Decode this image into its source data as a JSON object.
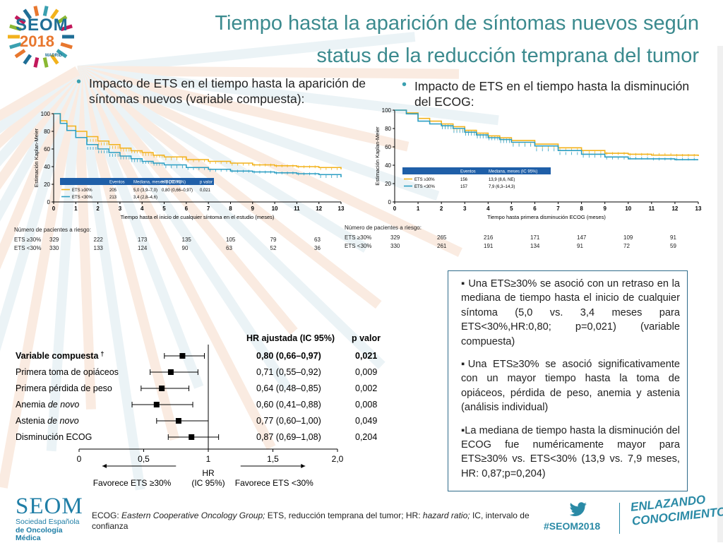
{
  "header": {
    "logo_line1": "SEOM",
    "logo_line2": "2018",
    "logo_city": "MADRID",
    "title_line1": "Tiempo hasta la aparición de síntomas nuevos según",
    "title_line2": "status de la reducción temprana del tumor"
  },
  "bullets": {
    "left_line1": "Impacto de ETS en el tiempo hasta la aparición de",
    "left_line2": "síntomas nuevos (variable compuesta):",
    "right_line1": "Impacto de ETS en el tiempo hasta la disminución",
    "right_line2": "del ECOG:"
  },
  "colors": {
    "ets_ge30": "#f2b21c",
    "ets_lt30": "#2b9ec3",
    "title": "#3b8a8e",
    "legend_header": "#1f5fa8",
    "accent": "#2a8aa6"
  },
  "chart_data": [
    {
      "type": "line",
      "title": "",
      "ylabel": "Estimación Kaplan-Meier",
      "xlabel": "Tiempo hasta el inicio de cualquier síntoma en el estudio (meses)",
      "x_ticks": [
        "0",
        "1",
        "2",
        "3",
        "4",
        "5",
        "6",
        "7",
        "8",
        "9",
        "10",
        "11",
        "12",
        "13"
      ],
      "y_ticks": [
        "0",
        "20",
        "40",
        "60",
        "80",
        "100"
      ],
      "xlim": [
        0,
        13
      ],
      "ylim": [
        0,
        100
      ],
      "legend": {
        "headers": [
          "Eventos",
          "Mediana, meses (IC95%)",
          "HR (IC 95%)",
          "p valor"
        ],
        "rows": [
          {
            "label": "ETS ≥30%",
            "events": "205",
            "median": "5,0 (3,9–7,0)",
            "hr": "0,80 (0,66–0,97)",
            "p": "0,021"
          },
          {
            "label": "ETS <30%",
            "events": "213",
            "median": "3,4 (2,8–4,6)",
            "hr": "",
            "p": ""
          }
        ]
      },
      "series": [
        {
          "name": "ETS ≥30%",
          "x": [
            0,
            0.3,
            0.6,
            1,
            1.5,
            2,
            2.5,
            3,
            3.5,
            4,
            4.5,
            5,
            6,
            7,
            8,
            9,
            10,
            11,
            12,
            13
          ],
          "y": [
            100,
            92,
            86,
            80,
            74,
            69,
            65,
            61,
            58,
            56,
            53,
            51,
            48,
            46,
            44,
            42,
            41,
            40,
            39,
            37
          ]
        },
        {
          "name": "ETS <30%",
          "x": [
            0,
            0.3,
            0.6,
            1,
            1.5,
            2,
            2.5,
            3,
            3.5,
            4,
            4.5,
            5,
            6,
            7,
            8,
            9,
            10,
            11,
            12,
            13
          ],
          "y": [
            100,
            89,
            81,
            73,
            65,
            60,
            56,
            52,
            49,
            46,
            44,
            42,
            39,
            37,
            35,
            34,
            33,
            32,
            31,
            28
          ]
        }
      ],
      "risk_table": {
        "title": "Número de pacientes a riesgo:",
        "rows": [
          {
            "label": "ETS ≥30%",
            "values": [
              "329",
              "222",
              "173",
              "135",
              "105",
              "79",
              "63"
            ]
          },
          {
            "label": "ETS <30%",
            "values": [
              "330",
              "133",
              "124",
              "90",
              "63",
              "52",
              "36"
            ]
          }
        ]
      }
    },
    {
      "type": "line",
      "title": "",
      "ylabel": "Estimación Kaplan-Meier",
      "xlabel": "Tiempo hasta primera disminución ECOG (meses)",
      "x_ticks": [
        "0",
        "1",
        "2",
        "3",
        "4",
        "5",
        "6",
        "7",
        "8",
        "9",
        "10",
        "11",
        "12",
        "13"
      ],
      "y_ticks": [
        "0",
        "20",
        "40",
        "60",
        "80",
        "100"
      ],
      "xlim": [
        0,
        13
      ],
      "ylim": [
        0,
        100
      ],
      "legend": {
        "headers": [
          "Eventos",
          "Mediana, meses (IC 95%)"
        ],
        "rows": [
          {
            "label": "ETS ≥30%",
            "events": "156",
            "median": "13,9 (8,6, NE)"
          },
          {
            "label": "ETS <30%",
            "events": "157",
            "median": "7,9 (6,3–14,3)"
          }
        ]
      },
      "series": [
        {
          "name": "ETS ≥30%",
          "x": [
            0,
            0.5,
            1,
            1.5,
            2,
            2.5,
            3,
            3.5,
            4,
            4.5,
            5,
            6,
            7,
            8,
            9,
            10,
            11,
            12,
            13
          ],
          "y": [
            100,
            97,
            91,
            88,
            85,
            82,
            78,
            75,
            72,
            70,
            67,
            63,
            59,
            56,
            53,
            52,
            51,
            51,
            50
          ]
        },
        {
          "name": "ETS <30%",
          "x": [
            0,
            0.5,
            1,
            1.5,
            2,
            2.5,
            3,
            3.5,
            4,
            4.5,
            5,
            6,
            7,
            8,
            9,
            10,
            11,
            12,
            13
          ],
          "y": [
            100,
            96,
            88,
            85,
            83,
            80,
            76,
            73,
            70,
            68,
            65,
            61,
            56,
            52,
            49,
            47,
            47,
            46,
            46
          ]
        }
      ],
      "risk_table": {
        "title": "Número de pacientes a riesgo:",
        "rows": [
          {
            "label": "ETS ≥30%",
            "values": [
              "329",
              "265",
              "216",
              "171",
              "147",
              "109",
              "91"
            ]
          },
          {
            "label": "ETS <30%",
            "values": [
              "330",
              "261",
              "191",
              "134",
              "91",
              "72",
              "59"
            ]
          }
        ]
      }
    },
    {
      "type": "scatter",
      "subtype": "forest",
      "col_hr": "HR ajustada (IC 95%)",
      "col_p": "p valor",
      "xlabel_line1": "HR",
      "xlabel_line2": "(IC 95%)",
      "x_ticks": [
        "0",
        "0,5",
        "1",
        "1,5",
        "2,0"
      ],
      "xlim": [
        0,
        2.0
      ],
      "favor_left": "Favorece ETS ≥30%",
      "favor_right": "Favorece ETS <30%",
      "rows": [
        {
          "label": "Variable compuesta",
          "label_italic": "",
          "dagger": "†",
          "bold": true,
          "hr": 0.8,
          "lo": 0.66,
          "hi": 0.97,
          "hr_text": "0,80 (0,66–0,97)",
          "p": "0,021"
        },
        {
          "label": "Primera toma de opiáceos",
          "label_italic": "",
          "dagger": "",
          "bold": false,
          "hr": 0.71,
          "lo": 0.55,
          "hi": 0.92,
          "hr_text": "0,71 (0,55–0,92)",
          "p": "0,009"
        },
        {
          "label": "Primera pérdida de peso",
          "label_italic": "",
          "dagger": "",
          "bold": false,
          "hr": 0.64,
          "lo": 0.48,
          "hi": 0.85,
          "hr_text": "0,64 (0,48–0,85)",
          "p": "0,002"
        },
        {
          "label": "Anemia ",
          "label_italic": "de novo",
          "dagger": "",
          "bold": false,
          "hr": 0.6,
          "lo": 0.41,
          "hi": 0.88,
          "hr_text": "0,60 (0,41–0,88)",
          "p": "0,008"
        },
        {
          "label": "Astenia ",
          "label_italic": "de novo",
          "dagger": "",
          "bold": false,
          "hr": 0.77,
          "lo": 0.6,
          "hi": 1.0,
          "hr_text": "0,77 (0,60–1,00)",
          "p": "0,049"
        },
        {
          "label": "Disminución ECOG",
          "label_italic": "",
          "dagger": "",
          "bold": false,
          "hr": 0.87,
          "lo": 0.69,
          "hi": 1.08,
          "hr_text": "0,87 (0,69–1,08)",
          "p": "0,204"
        }
      ]
    }
  ],
  "textbox": {
    "p1": "Una ETS≥30% se asoció con un retraso en la mediana de tiempo hasta el inicio de cualquier síntoma (5,0 vs. 3,4 meses para ETS<30%,HR:0,80; p=0,021) (variable compuesta)",
    "p2": "Una ETS≥30% se asoció significativamente con un mayor tiempo hasta la toma de opiáceos, pérdida de peso, anemia y astenia (análisis individual)",
    "p3": "La mediana de tiempo hasta la disminución del ECOG fue numéricamente mayor para ETS≥30% vs. ETS<30% (13,9 vs. 7,9 meses, HR: 0,87;p=0,204)",
    "bullet_glyph": "▪"
  },
  "footer": {
    "seom": "SEOM",
    "seom_sub1": "Sociedad Española",
    "seom_sub2": "de Oncología Médica",
    "footnote_pre": "ECOG: ",
    "footnote_it1": "Eastern Cooperative Oncology Group;",
    "footnote_mid": " ETS, reducción temprana del tumor; HR: ",
    "footnote_it2": "hazard ratio;",
    "footnote_post": " IC, intervalo de confianza",
    "hashtag": "#SEOM2018",
    "slogan_line1": "ENLAZANDO",
    "slogan_line2": "CONOCIMIENTO",
    "twitter_icon": "twitter-bird-icon"
  }
}
